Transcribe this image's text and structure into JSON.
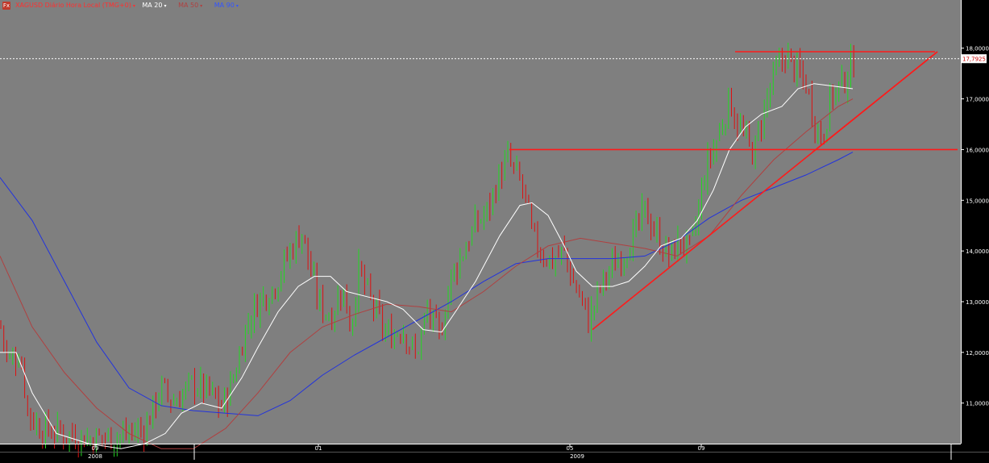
{
  "header": {
    "icon": "fx-icon",
    "icon_text": "Fx",
    "symbol_label": "XAGUSD Diário Hora Local (TMG+0)",
    "indicators": [
      {
        "label": "MA 20",
        "color": "#ffffff"
      },
      {
        "label": "MA 50",
        "color": "#b04040"
      },
      {
        "label": "MA 90",
        "color": "#3355ff"
      }
    ]
  },
  "price_tag": {
    "value": "17,7925",
    "price": 17.7925
  },
  "colors": {
    "background": "#7f7f7f",
    "axis_bg": "#000000",
    "up": "#22d822",
    "down": "#dd1111",
    "ma20": "#ffffff",
    "ma50": "#b04040",
    "ma90": "#2233dd",
    "trendline": "#ff1a1a"
  },
  "chart_data": {
    "type": "candlestick",
    "title": "XAGUSD Diário Hora Local (TMG+0)",
    "ylim": [
      10.2,
      18.95
    ],
    "y_ticks": [
      11,
      12,
      13,
      14,
      15,
      16,
      17,
      18
    ],
    "y_tick_labels": [
      "11,0000",
      "12,0000",
      "13,0000",
      "14,0000",
      "15,0000",
      "16,0000",
      "17,0000",
      "18,0000"
    ],
    "x_month_labels": [
      "09",
      "01",
      "05",
      "09"
    ],
    "x_year_labels": [
      "2008",
      "2009"
    ],
    "x_range": [
      0,
      1192
    ],
    "month_ticks": [
      {
        "label": "09",
        "x": 118
      },
      {
        "label": "01",
        "x": 395
      },
      {
        "label": "05",
        "x": 707
      },
      {
        "label": "09",
        "x": 870
      }
    ],
    "year_ticks": [
      {
        "label": "2008",
        "x": 118
      },
      {
        "label": "2009",
        "x": 716
      }
    ],
    "year_separators": [
      241,
      1180
    ],
    "price_anchors": [
      [
        0,
        12.6
      ],
      [
        10,
        11.8
      ],
      [
        25,
        12.0
      ],
      [
        35,
        10.8
      ],
      [
        50,
        10.5
      ],
      [
        80,
        10.4
      ],
      [
        110,
        10.3
      ],
      [
        150,
        10.35
      ],
      [
        180,
        10.5
      ],
      [
        200,
        11.3
      ],
      [
        215,
        11.0
      ],
      [
        240,
        11.4
      ],
      [
        260,
        11.2
      ],
      [
        275,
        10.9
      ],
      [
        290,
        11.5
      ],
      [
        305,
        12.5
      ],
      [
        320,
        13.0
      ],
      [
        340,
        13.3
      ],
      [
        360,
        14.0
      ],
      [
        375,
        14.4
      ],
      [
        385,
        13.6
      ],
      [
        395,
        13.0
      ],
      [
        410,
        12.7
      ],
      [
        425,
        13.3
      ],
      [
        435,
        12.5
      ],
      [
        445,
        13.6
      ],
      [
        460,
        13.0
      ],
      [
        480,
        12.3
      ],
      [
        500,
        12.5
      ],
      [
        515,
        11.9
      ],
      [
        530,
        12.8
      ],
      [
        545,
        12.3
      ],
      [
        560,
        13.5
      ],
      [
        575,
        14.0
      ],
      [
        590,
        14.5
      ],
      [
        605,
        14.8
      ],
      [
        620,
        15.5
      ],
      [
        630,
        15.8
      ],
      [
        640,
        15.5
      ],
      [
        650,
        15.2
      ],
      [
        660,
        14.3
      ],
      [
        670,
        14.0
      ],
      [
        685,
        13.8
      ],
      [
        700,
        14.0
      ],
      [
        710,
        13.4
      ],
      [
        720,
        13.1
      ],
      [
        730,
        12.6
      ],
      [
        745,
        13.3
      ],
      [
        760,
        13.7
      ],
      [
        775,
        14.0
      ],
      [
        790,
        14.4
      ],
      [
        800,
        14.8
      ],
      [
        815,
        14.3
      ],
      [
        830,
        13.9
      ],
      [
        845,
        14.2
      ],
      [
        855,
        14.0
      ],
      [
        865,
        14.6
      ],
      [
        875,
        15.6
      ],
      [
        890,
        16.2
      ],
      [
        905,
        17.0
      ],
      [
        915,
        16.5
      ],
      [
        925,
        16.2
      ],
      [
        935,
        15.9
      ],
      [
        945,
        16.6
      ],
      [
        955,
        17.2
      ],
      [
        965,
        17.6
      ],
      [
        975,
        17.9
      ],
      [
        985,
        17.6
      ],
      [
        1000,
        17.3
      ],
      [
        1010,
        16.6
      ],
      [
        1020,
        16.2
      ],
      [
        1030,
        17.0
      ],
      [
        1045,
        17.3
      ],
      [
        1060,
        17.75
      ]
    ],
    "ma20": [
      [
        0,
        12.0
      ],
      [
        20,
        12.0
      ],
      [
        40,
        11.2
      ],
      [
        70,
        10.4
      ],
      [
        110,
        10.2
      ],
      [
        150,
        10.1
      ],
      [
        180,
        10.2
      ],
      [
        205,
        10.4
      ],
      [
        225,
        10.8
      ],
      [
        250,
        11.0
      ],
      [
        275,
        10.9
      ],
      [
        300,
        11.5
      ],
      [
        320,
        12.1
      ],
      [
        345,
        12.8
      ],
      [
        370,
        13.3
      ],
      [
        390,
        13.5
      ],
      [
        410,
        13.5
      ],
      [
        430,
        13.2
      ],
      [
        455,
        13.1
      ],
      [
        480,
        13.0
      ],
      [
        500,
        12.85
      ],
      [
        525,
        12.45
      ],
      [
        548,
        12.4
      ],
      [
        565,
        12.8
      ],
      [
        590,
        13.4
      ],
      [
        620,
        14.3
      ],
      [
        645,
        14.9
      ],
      [
        660,
        14.95
      ],
      [
        680,
        14.7
      ],
      [
        700,
        14.1
      ],
      [
        715,
        13.6
      ],
      [
        735,
        13.3
      ],
      [
        760,
        13.3
      ],
      [
        780,
        13.4
      ],
      [
        800,
        13.7
      ],
      [
        820,
        14.1
      ],
      [
        845,
        14.25
      ],
      [
        865,
        14.6
      ],
      [
        885,
        15.2
      ],
      [
        905,
        16.0
      ],
      [
        925,
        16.45
      ],
      [
        945,
        16.7
      ],
      [
        970,
        16.85
      ],
      [
        990,
        17.2
      ],
      [
        1010,
        17.3
      ],
      [
        1035,
        17.25
      ],
      [
        1058,
        17.2
      ]
    ],
    "ma50": [
      [
        0,
        13.9
      ],
      [
        40,
        12.5
      ],
      [
        80,
        11.6
      ],
      [
        120,
        10.9
      ],
      [
        160,
        10.4
      ],
      [
        200,
        10.1
      ],
      [
        240,
        10.1
      ],
      [
        280,
        10.5
      ],
      [
        320,
        11.2
      ],
      [
        360,
        12.0
      ],
      [
        400,
        12.5
      ],
      [
        440,
        12.75
      ],
      [
        480,
        12.95
      ],
      [
        520,
        12.9
      ],
      [
        560,
        12.8
      ],
      [
        600,
        13.2
      ],
      [
        640,
        13.7
      ],
      [
        680,
        14.1
      ],
      [
        720,
        14.25
      ],
      [
        760,
        14.15
      ],
      [
        800,
        14.05
      ],
      [
        840,
        13.9
      ],
      [
        880,
        14.3
      ],
      [
        920,
        15.1
      ],
      [
        960,
        15.8
      ],
      [
        1000,
        16.35
      ],
      [
        1040,
        16.85
      ],
      [
        1058,
        17.0
      ]
    ],
    "ma90": [
      [
        0,
        15.45
      ],
      [
        40,
        14.6
      ],
      [
        80,
        13.4
      ],
      [
        120,
        12.2
      ],
      [
        160,
        11.3
      ],
      [
        200,
        10.95
      ],
      [
        240,
        10.85
      ],
      [
        280,
        10.8
      ],
      [
        320,
        10.75
      ],
      [
        360,
        11.05
      ],
      [
        400,
        11.55
      ],
      [
        440,
        11.95
      ],
      [
        480,
        12.3
      ],
      [
        520,
        12.65
      ],
      [
        560,
        13.0
      ],
      [
        600,
        13.4
      ],
      [
        640,
        13.75
      ],
      [
        680,
        13.85
      ],
      [
        720,
        13.85
      ],
      [
        760,
        13.85
      ],
      [
        800,
        13.9
      ],
      [
        840,
        14.2
      ],
      [
        880,
        14.65
      ],
      [
        920,
        15.0
      ],
      [
        960,
        15.25
      ],
      [
        1000,
        15.5
      ],
      [
        1040,
        15.8
      ],
      [
        1058,
        15.95
      ]
    ],
    "annotations": [
      {
        "type": "line",
        "points": [
          [
            912,
            17.93
          ],
          [
            1160,
            17.93
          ]
        ]
      },
      {
        "type": "line",
        "points": [
          [
            632,
            16.0
          ],
          [
            1188,
            16.0
          ]
        ]
      },
      {
        "type": "line",
        "points": [
          [
            735,
            12.45
          ],
          [
            1163,
            17.93
          ]
        ]
      },
      {
        "type": "line",
        "points": [
          [
            1008,
            15.95
          ],
          [
            1163,
            17.93
          ]
        ]
      }
    ],
    "current_price": 17.7925,
    "grid": false,
    "legend": "top-left"
  }
}
